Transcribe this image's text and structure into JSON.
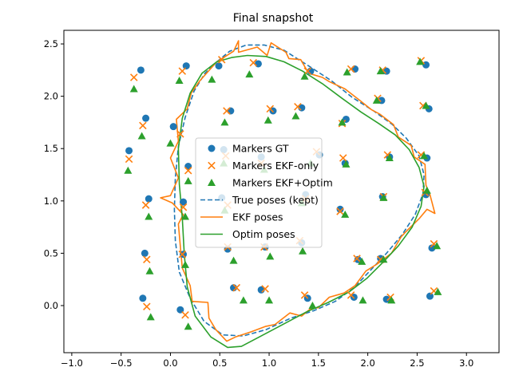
{
  "chart_data": {
    "type": "scatter",
    "title": "Final snapshot",
    "xlabel": "",
    "ylabel": "",
    "xlim": [
      -1.08,
      3.33
    ],
    "ylim": [
      -0.45,
      2.63
    ],
    "xticks": [
      -1.0,
      -0.5,
      0.0,
      0.5,
      1.0,
      1.5,
      2.0,
      2.5,
      3.0
    ],
    "xtick_labels": [
      "−1.0",
      "−0.5",
      "0.0",
      "0.5",
      "1.0",
      "1.5",
      "2.0",
      "2.5",
      "3.0"
    ],
    "yticks": [
      0.0,
      0.5,
      1.0,
      1.5,
      2.0,
      2.5
    ],
    "ytick_labels": [
      "0.0",
      "0.5",
      "1.0",
      "1.5",
      "2.0",
      "2.5"
    ],
    "grid": false,
    "legend_position": "center",
    "colors": {
      "gt": "#1f77b4",
      "ekf": "#ff7f0e",
      "optim": "#2ca02c"
    },
    "legend": [
      {
        "label": "Markers GT",
        "kind": "circle",
        "color": "#1f77b4"
      },
      {
        "label": "Markers EKF-only",
        "kind": "x",
        "color": "#ff7f0e"
      },
      {
        "label": "Markers EKF+Optim",
        "kind": "triangle",
        "color": "#2ca02c"
      },
      {
        "label": "True poses (kept)",
        "kind": "dashed",
        "color": "#1f77b4"
      },
      {
        "label": "EKF poses",
        "kind": "line",
        "color": "#ff7f0e"
      },
      {
        "label": "Optim poses",
        "kind": "line",
        "color": "#2ca02c"
      }
    ],
    "markers_gt": [
      [
        -0.3,
        2.25
      ],
      [
        0.16,
        2.29
      ],
      [
        0.49,
        2.29
      ],
      [
        0.89,
        2.31
      ],
      [
        1.42,
        2.24
      ],
      [
        1.87,
        2.26
      ],
      [
        2.19,
        2.24
      ],
      [
        2.59,
        2.3
      ],
      [
        -0.25,
        1.79
      ],
      [
        0.03,
        1.71
      ],
      [
        0.61,
        1.86
      ],
      [
        1.04,
        1.86
      ],
      [
        1.33,
        1.89
      ],
      [
        1.78,
        1.78
      ],
      [
        2.14,
        1.96
      ],
      [
        2.62,
        1.88
      ],
      [
        -0.42,
        1.48
      ],
      [
        0.18,
        1.33
      ],
      [
        0.54,
        1.49
      ],
      [
        0.92,
        1.42
      ],
      [
        1.51,
        1.44
      ],
      [
        1.77,
        1.36
      ],
      [
        2.22,
        1.42
      ],
      [
        2.6,
        1.41
      ],
      [
        -0.22,
        1.02
      ],
      [
        0.13,
        0.99
      ],
      [
        0.52,
        1.03
      ],
      [
        1.37,
        1.06
      ],
      [
        1.72,
        0.92
      ],
      [
        2.15,
        1.04
      ],
      [
        2.59,
        1.06
      ],
      [
        -0.26,
        0.5
      ],
      [
        0.13,
        0.49
      ],
      [
        0.58,
        0.54
      ],
      [
        0.96,
        0.56
      ],
      [
        1.33,
        0.6
      ],
      [
        1.9,
        0.44
      ],
      [
        2.13,
        0.45
      ],
      [
        2.65,
        0.55
      ],
      [
        -0.28,
        0.07
      ],
      [
        0.1,
        -0.04
      ],
      [
        0.64,
        0.17
      ],
      [
        0.92,
        0.15
      ],
      [
        1.39,
        0.07
      ],
      [
        1.86,
        0.08
      ],
      [
        2.19,
        0.06
      ],
      [
        2.63,
        0.09
      ]
    ],
    "markers_ekf": [
      [
        -0.37,
        2.18
      ],
      [
        0.12,
        2.24
      ],
      [
        0.52,
        2.35
      ],
      [
        0.84,
        2.32
      ],
      [
        1.39,
        2.24
      ],
      [
        1.83,
        2.26
      ],
      [
        2.15,
        2.25
      ],
      [
        2.54,
        2.34
      ],
      [
        -0.28,
        1.72
      ],
      [
        0.1,
        1.64
      ],
      [
        0.57,
        1.86
      ],
      [
        1.01,
        1.88
      ],
      [
        1.29,
        1.9
      ],
      [
        1.74,
        1.74
      ],
      [
        2.1,
        1.98
      ],
      [
        2.56,
        1.91
      ],
      [
        -0.42,
        1.4
      ],
      [
        0.18,
        1.29
      ],
      [
        0.56,
        1.43
      ],
      [
        0.92,
        1.36
      ],
      [
        1.48,
        1.47
      ],
      [
        1.75,
        1.41
      ],
      [
        2.2,
        1.44
      ],
      [
        2.54,
        1.44
      ],
      [
        -0.25,
        0.96
      ],
      [
        0.13,
        0.94
      ],
      [
        0.58,
        0.96
      ],
      [
        1.37,
        1.02
      ],
      [
        1.72,
        0.9
      ],
      [
        2.16,
        1.04
      ],
      [
        2.58,
        1.08
      ],
      [
        -0.24,
        0.44
      ],
      [
        0.12,
        0.49
      ],
      [
        0.58,
        0.56
      ],
      [
        0.95,
        0.56
      ],
      [
        1.31,
        0.62
      ],
      [
        1.89,
        0.45
      ],
      [
        2.13,
        0.44
      ],
      [
        2.67,
        0.59
      ],
      [
        -0.24,
        -0.01
      ],
      [
        0.15,
        -0.09
      ],
      [
        0.67,
        0.17
      ],
      [
        0.96,
        0.16
      ],
      [
        1.36,
        0.1
      ],
      [
        1.83,
        0.1
      ],
      [
        2.23,
        0.08
      ],
      [
        2.67,
        0.14
      ]
    ],
    "markers_optim": [
      [
        -0.37,
        2.07
      ],
      [
        0.09,
        2.15
      ],
      [
        0.42,
        2.16
      ],
      [
        0.8,
        2.21
      ],
      [
        1.36,
        2.19
      ],
      [
        1.79,
        2.23
      ],
      [
        2.13,
        2.24
      ],
      [
        2.53,
        2.33
      ],
      [
        -0.29,
        1.62
      ],
      [
        0.0,
        1.55
      ],
      [
        0.55,
        1.75
      ],
      [
        0.99,
        1.77
      ],
      [
        1.27,
        1.81
      ],
      [
        1.74,
        1.75
      ],
      [
        2.09,
        1.96
      ],
      [
        2.59,
        1.91
      ],
      [
        -0.43,
        1.29
      ],
      [
        0.18,
        1.19
      ],
      [
        0.54,
        1.36
      ],
      [
        0.95,
        1.3
      ],
      [
        1.42,
        1.36
      ],
      [
        1.78,
        1.35
      ],
      [
        2.22,
        1.41
      ],
      [
        2.57,
        1.43
      ],
      [
        -0.22,
        0.85
      ],
      [
        0.15,
        0.85
      ],
      [
        0.55,
        0.91
      ],
      [
        1.33,
        0.98
      ],
      [
        1.77,
        0.87
      ],
      [
        2.16,
        1.03
      ],
      [
        2.6,
        1.1
      ],
      [
        -0.21,
        0.33
      ],
      [
        0.15,
        0.39
      ],
      [
        0.64,
        0.43
      ],
      [
        1.01,
        0.47
      ],
      [
        1.34,
        0.52
      ],
      [
        1.94,
        0.42
      ],
      [
        2.16,
        0.44
      ],
      [
        2.7,
        0.57
      ],
      [
        -0.2,
        -0.11
      ],
      [
        0.18,
        -0.2
      ],
      [
        0.74,
        0.05
      ],
      [
        1.0,
        0.05
      ],
      [
        1.44,
        0.0
      ],
      [
        1.95,
        0.05
      ],
      [
        2.24,
        0.05
      ],
      [
        2.71,
        0.13
      ]
    ],
    "true_poses": [
      [
        0.47,
        2.33
      ],
      [
        0.6,
        2.43
      ],
      [
        0.77,
        2.49
      ],
      [
        0.95,
        2.49
      ],
      [
        1.15,
        2.44
      ],
      [
        1.4,
        2.29
      ],
      [
        1.63,
        2.15
      ],
      [
        1.84,
        1.99
      ],
      [
        2.06,
        1.86
      ],
      [
        2.25,
        1.73
      ],
      [
        2.39,
        1.6
      ],
      [
        2.52,
        1.43
      ],
      [
        2.57,
        1.25
      ],
      [
        2.56,
        1.07
      ],
      [
        2.48,
        0.87
      ],
      [
        2.35,
        0.68
      ],
      [
        2.19,
        0.5
      ],
      [
        2.02,
        0.33
      ],
      [
        1.86,
        0.17
      ],
      [
        1.67,
        0.04
      ],
      [
        1.45,
        -0.05
      ],
      [
        1.22,
        -0.12
      ],
      [
        0.97,
        -0.23
      ],
      [
        0.74,
        -0.29
      ],
      [
        0.53,
        -0.28
      ],
      [
        0.34,
        -0.15
      ],
      [
        0.2,
        0.07
      ],
      [
        0.09,
        0.32
      ],
      [
        0.05,
        0.62
      ],
      [
        0.04,
        0.92
      ],
      [
        0.05,
        1.22
      ],
      [
        0.08,
        1.52
      ],
      [
        0.15,
        1.8
      ],
      [
        0.24,
        2.05
      ],
      [
        0.35,
        2.22
      ],
      [
        0.47,
        2.33
      ]
    ],
    "ekf_poses": [
      [
        0.3,
        2.15
      ],
      [
        0.47,
        2.33
      ],
      [
        0.64,
        2.43
      ],
      [
        0.69,
        2.53
      ],
      [
        0.69,
        2.42
      ],
      [
        0.88,
        2.47
      ],
      [
        0.98,
        2.39
      ],
      [
        1.02,
        2.51
      ],
      [
        1.17,
        2.42
      ],
      [
        1.2,
        2.36
      ],
      [
        1.32,
        2.35
      ],
      [
        1.4,
        2.22
      ],
      [
        1.54,
        2.18
      ],
      [
        1.61,
        2.14
      ],
      [
        1.77,
        2.07
      ],
      [
        1.92,
        1.96
      ],
      [
        2.04,
        1.87
      ],
      [
        2.12,
        1.83
      ],
      [
        2.26,
        1.73
      ],
      [
        2.31,
        1.61
      ],
      [
        2.44,
        1.53
      ],
      [
        2.47,
        1.42
      ],
      [
        2.58,
        1.35
      ],
      [
        2.59,
        1.15
      ],
      [
        2.63,
        1.06
      ],
      [
        2.68,
        0.88
      ],
      [
        2.6,
        0.92
      ],
      [
        2.52,
        0.83
      ],
      [
        2.38,
        0.7
      ],
      [
        2.34,
        0.66
      ],
      [
        2.24,
        0.5
      ],
      [
        2.1,
        0.4
      ],
      [
        1.98,
        0.33
      ],
      [
        1.87,
        0.19
      ],
      [
        1.76,
        0.12
      ],
      [
        1.61,
        0.08
      ],
      [
        1.5,
        -0.02
      ],
      [
        1.42,
        -0.03
      ],
      [
        1.33,
        -0.1
      ],
      [
        1.21,
        -0.07
      ],
      [
        1.06,
        -0.18
      ],
      [
        0.96,
        -0.2
      ],
      [
        0.82,
        -0.25
      ],
      [
        0.66,
        -0.3
      ],
      [
        0.57,
        -0.34
      ],
      [
        0.46,
        -0.23
      ],
      [
        0.39,
        -0.12
      ],
      [
        0.38,
        0.03
      ],
      [
        0.22,
        0.04
      ],
      [
        0.2,
        0.19
      ],
      [
        0.12,
        0.36
      ],
      [
        0.11,
        0.46
      ],
      [
        0.08,
        0.78
      ],
      [
        0.13,
        0.87
      ],
      [
        0.02,
        0.98
      ],
      [
        -0.1,
        1.03
      ],
      [
        0.0,
        1.05
      ],
      [
        0.08,
        1.22
      ],
      [
        0.0,
        1.41
      ],
      [
        0.08,
        1.57
      ],
      [
        0.06,
        1.78
      ],
      [
        0.17,
        1.88
      ],
      [
        0.21,
        2.03
      ],
      [
        0.3,
        2.15
      ]
    ],
    "optim_poses": [
      [
        0.47,
        2.33
      ],
      [
        0.62,
        2.37
      ],
      [
        0.78,
        2.39
      ],
      [
        0.97,
        2.38
      ],
      [
        1.15,
        2.33
      ],
      [
        1.34,
        2.24
      ],
      [
        1.54,
        2.12
      ],
      [
        1.74,
        1.98
      ],
      [
        1.93,
        1.85
      ],
      [
        2.11,
        1.74
      ],
      [
        2.28,
        1.63
      ],
      [
        2.42,
        1.49
      ],
      [
        2.52,
        1.32
      ],
      [
        2.57,
        1.14
      ],
      [
        2.54,
        0.95
      ],
      [
        2.45,
        0.75
      ],
      [
        2.31,
        0.57
      ],
      [
        2.15,
        0.41
      ],
      [
        1.99,
        0.26
      ],
      [
        1.81,
        0.13
      ],
      [
        1.6,
        0.03
      ],
      [
        1.38,
        -0.06
      ],
      [
        1.14,
        -0.18
      ],
      [
        0.9,
        -0.3
      ],
      [
        0.72,
        -0.39
      ],
      [
        0.58,
        -0.4
      ],
      [
        0.41,
        -0.3
      ],
      [
        0.25,
        -0.1
      ],
      [
        0.17,
        0.18
      ],
      [
        0.14,
        0.49
      ],
      [
        0.12,
        0.84
      ],
      [
        0.09,
        1.16
      ],
      [
        0.08,
        1.5
      ],
      [
        0.12,
        1.79
      ],
      [
        0.2,
        2.03
      ],
      [
        0.32,
        2.22
      ],
      [
        0.47,
        2.33
      ]
    ]
  }
}
